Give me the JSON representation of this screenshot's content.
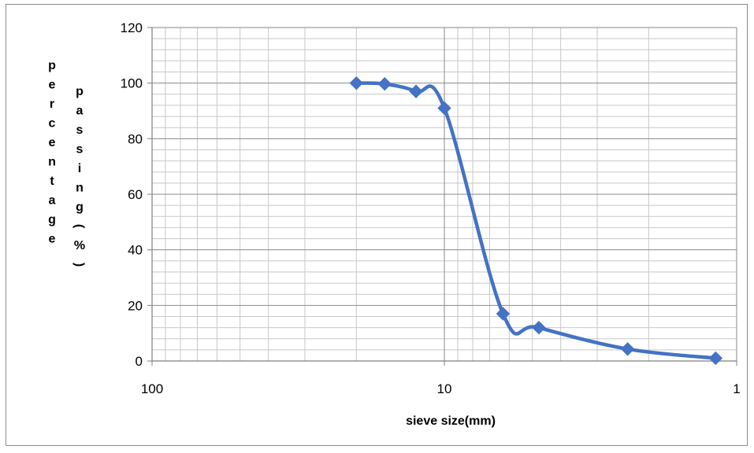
{
  "chart_data": {
    "type": "line",
    "xscale": "log",
    "x_reversed": true,
    "xlim": [
      100,
      1
    ],
    "ylim": [
      0,
      120
    ],
    "xticks": [
      "100",
      "10",
      "1"
    ],
    "yticks": [
      "0",
      "20",
      "40",
      "60",
      "80",
      "100",
      "120"
    ],
    "xlabel": "sieve size(mm)",
    "ylabel": "percentage passing(%)",
    "grid": true,
    "series": [
      {
        "color": "#4472C4",
        "marker": "diamond",
        "x": [
          20,
          16,
          12.5,
          10,
          6.3,
          4.75,
          2.36,
          1.18
        ],
        "y": [
          100,
          99.7,
          97,
          91,
          17,
          12,
          4.3,
          1
        ]
      }
    ]
  }
}
